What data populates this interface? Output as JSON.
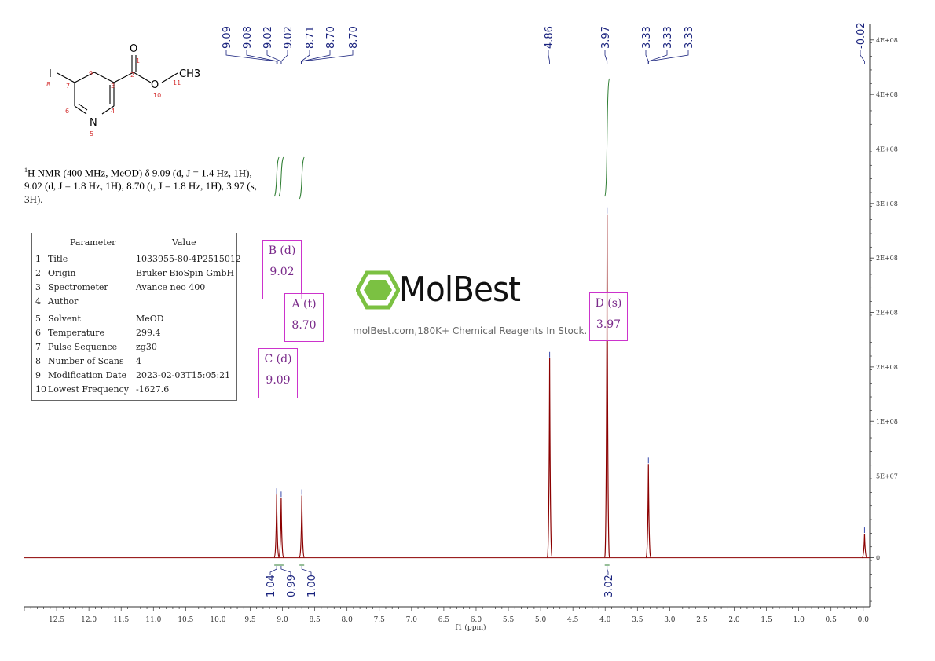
{
  "nmr_description": {
    "line1": "H NMR (400 MHz, MeOD) δ 9.09 (d, J = 1.4 Hz, 1H),",
    "line1_sup": "1",
    "line2": "9.02 (d, J = 1.8 Hz, 1H), 8.70 (t, J = 1.8 Hz, 1H), 3.97 (s,",
    "line3": "3H)."
  },
  "structure": {
    "atoms": [
      "O",
      "O",
      "CH3",
      "N",
      "I"
    ],
    "atom_numbers": [
      "1",
      "2",
      "3",
      "4",
      "5",
      "6",
      "7",
      "8",
      "9",
      "10",
      "11"
    ]
  },
  "parameters": {
    "header_param": "Parameter",
    "header_value": "Value",
    "rows": [
      {
        "n": "1",
        "name": "Title",
        "value": "1033955-80-4P2515012"
      },
      {
        "n": "2",
        "name": "Origin",
        "value": "Bruker BioSpin GmbH"
      },
      {
        "n": "3",
        "name": "Spectrometer",
        "value": "Avance neo 400"
      },
      {
        "n": "4",
        "name": "Author",
        "value": ""
      },
      {
        "n": "5",
        "name": "Solvent",
        "value": "MeOD"
      },
      {
        "n": "6",
        "name": "Temperature",
        "value": "299.4"
      },
      {
        "n": "7",
        "name": "Pulse Sequence",
        "value": "zg30"
      },
      {
        "n": "8",
        "name": "Number of Scans",
        "value": "4"
      },
      {
        "n": "9",
        "name": "Modification Date",
        "value": "2023-02-03T15:05:21"
      },
      {
        "n": "10",
        "name": "Lowest Frequency",
        "value": "-1627.6"
      }
    ]
  },
  "peak_boxes": [
    {
      "label": "B (d)",
      "value": "9.02"
    },
    {
      "label": "A (t)",
      "value": "8.70"
    },
    {
      "label": "C (d)",
      "value": "9.09"
    },
    {
      "label": "D (s)",
      "value": "3.97"
    }
  ],
  "watermark": {
    "brand": "MolBest",
    "tagline": "molBest.com,180K+ Chemical Reagents In Stock."
  },
  "colors": {
    "spectrum": "#8b0000",
    "peak_label": "#1a237e",
    "integral": "#2e7d32",
    "box": "#cc33cc",
    "logo_green": "#7bc142"
  },
  "chart_data": {
    "type": "line",
    "xlabel": "f1 (ppm)",
    "xlim": [
      13.0,
      -0.1
    ],
    "x_reversed": true,
    "x_ticks": [
      "12.5",
      "12.0",
      "11.5",
      "11.0",
      "10.5",
      "10.0",
      "9.5",
      "9.0",
      "8.5",
      "8.0",
      "7.5",
      "7.0",
      "6.5",
      "6.0",
      "5.5",
      "5.0",
      "4.5",
      "4.0",
      "3.5",
      "3.0",
      "2.5",
      "2.0",
      "1.5",
      "1.0",
      "0.5",
      "0.0"
    ],
    "x_tick_values": [
      12.5,
      12.0,
      11.5,
      11.0,
      10.5,
      10.0,
      9.5,
      9.0,
      8.5,
      8.0,
      7.5,
      7.0,
      6.5,
      6.0,
      5.5,
      5.0,
      4.5,
      4.0,
      3.5,
      3.0,
      2.5,
      2.0,
      1.5,
      1.0,
      0.5,
      0.0
    ],
    "y_ticks": [
      "4E+08",
      "4E+08",
      "4E+08",
      "3E+08",
      "2E+08",
      "2E+08",
      "2E+08",
      "1E+08",
      "5E+07",
      "0"
    ],
    "y_tick_values": [
      475000000,
      425000000,
      375000000,
      325000000,
      275000000,
      225000000,
      175000000,
      125000000,
      75000000,
      0
    ],
    "ylim": [
      -45000000,
      490000000
    ],
    "peaks": [
      {
        "ppm": 9.09,
        "height": 58000000
      },
      {
        "ppm": 9.02,
        "height": 55000000
      },
      {
        "ppm": 8.7,
        "height": 57000000
      },
      {
        "ppm": 4.86,
        "height": 183000000
      },
      {
        "ppm": 3.97,
        "height": 315000000
      },
      {
        "ppm": 3.33,
        "height": 86000000
      },
      {
        "ppm": -0.02,
        "height": 22000000
      }
    ],
    "peak_labels_top": [
      {
        "group": "9.09",
        "labels": [
          "9.09",
          "9.08",
          "9.02",
          "9.02"
        ]
      },
      {
        "group": "8.70",
        "labels": [
          "8.71",
          "8.70",
          "8.70"
        ]
      },
      {
        "group": "4.86",
        "labels": [
          "4.86"
        ]
      },
      {
        "group": "3.97",
        "labels": [
          "3.97"
        ]
      },
      {
        "group": "3.33",
        "labels": [
          "3.33",
          "3.33",
          "3.33"
        ]
      },
      {
        "group": "-0.02",
        "labels": [
          "-0.02"
        ]
      }
    ],
    "integrals": [
      {
        "ppm": 9.09,
        "value": "1.04"
      },
      {
        "ppm": 9.02,
        "value": "0.99"
      },
      {
        "ppm": 8.7,
        "value": "1.00"
      },
      {
        "ppm": 3.97,
        "value": "3.02"
      }
    ]
  }
}
